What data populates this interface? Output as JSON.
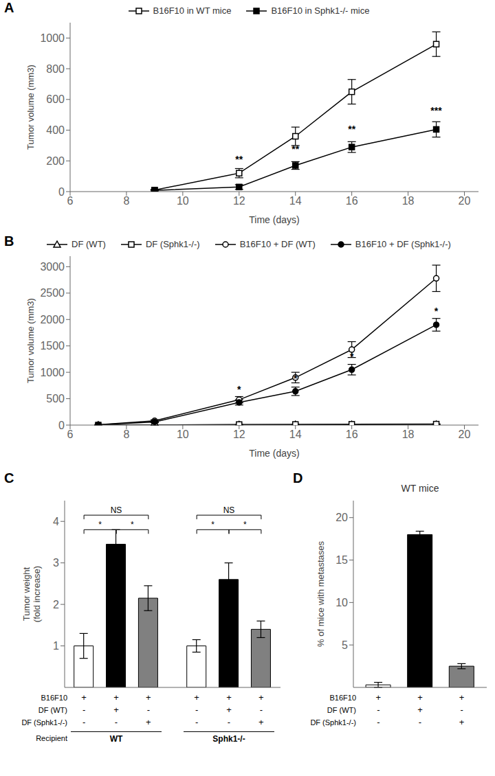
{
  "chart_data": [
    {
      "type": "line",
      "title": "A",
      "xlabel": "Time (days)",
      "ylabel": "Tumor volume (mm3)",
      "xlim": [
        6,
        20.5
      ],
      "ylim": [
        0,
        1100
      ],
      "xticks": [
        6,
        8,
        10,
        12,
        14,
        16,
        18,
        20
      ],
      "yticks": [
        0,
        200,
        400,
        600,
        800,
        1000
      ],
      "grid": false,
      "legend": "top",
      "series": [
        {
          "name": "B16F10 in WT mice",
          "color": "black",
          "marker": "open-square",
          "x": [
            9,
            12,
            14,
            16,
            19
          ],
          "values": [
            10,
            120,
            360,
            650,
            960
          ],
          "errors": [
            5,
            30,
            60,
            80,
            80
          ]
        },
        {
          "name": "B16F10 in Sphk1-/- mice",
          "color": "black",
          "marker": "square",
          "x": [
            9,
            12,
            14,
            16,
            19
          ],
          "values": [
            8,
            30,
            170,
            290,
            405
          ],
          "errors": [
            4,
            15,
            25,
            35,
            50
          ]
        }
      ],
      "annotations": [
        {
          "x": 12,
          "y": 175,
          "text": "**"
        },
        {
          "x": 14,
          "y": 240,
          "text": "**"
        },
        {
          "x": 16,
          "y": 370,
          "text": "**"
        },
        {
          "x": 19,
          "y": 490,
          "text": "***"
        }
      ]
    },
    {
      "type": "line",
      "title": "B",
      "xlabel": "Time (days)",
      "ylabel": "Tumor volume (mm3)",
      "xlim": [
        6,
        20.5
      ],
      "ylim": [
        0,
        3200
      ],
      "xticks": [
        6,
        8,
        10,
        12,
        14,
        16,
        18,
        20
      ],
      "yticks": [
        0,
        500,
        1000,
        1500,
        2000,
        2500,
        3000
      ],
      "grid": false,
      "legend": "top",
      "series": [
        {
          "name": "DF (WT)",
          "color": "black",
          "marker": "open-triangle",
          "x": [
            7,
            9,
            12,
            14,
            16,
            19
          ],
          "values": [
            0,
            2,
            5,
            8,
            10,
            12
          ],
          "errors": [
            0,
            1,
            2,
            2,
            2,
            3
          ]
        },
        {
          "name": "DF (Sphk1-/-)",
          "color": "black",
          "marker": "open-square",
          "x": [
            7,
            9,
            12,
            14,
            16,
            19
          ],
          "values": [
            0,
            3,
            10,
            12,
            15,
            18
          ],
          "errors": [
            0,
            1,
            2,
            2,
            3,
            4
          ]
        },
        {
          "name": "B16F10 + DF (WT)",
          "color": "black",
          "marker": "open-circle",
          "x": [
            7,
            9,
            12,
            14,
            16,
            19
          ],
          "values": [
            5,
            80,
            480,
            900,
            1430,
            2780
          ],
          "errors": [
            2,
            20,
            60,
            100,
            150,
            250
          ]
        },
        {
          "name": "B16F10 + DF (Sphk1-/-)",
          "color": "black",
          "marker": "circle",
          "x": [
            7,
            9,
            12,
            14,
            16,
            19
          ],
          "values": [
            5,
            60,
            430,
            640,
            1050,
            1900
          ],
          "errors": [
            2,
            15,
            50,
            80,
            100,
            120
          ]
        }
      ],
      "annotations": [
        {
          "x": 12,
          "y": 570,
          "text": "*"
        },
        {
          "x": 14,
          "y": 780,
          "text": "*"
        },
        {
          "x": 16,
          "y": 1200,
          "text": "*"
        },
        {
          "x": 19,
          "y": 2060,
          "text": "*"
        }
      ]
    },
    {
      "type": "bar",
      "title": "C",
      "ylabel": "Tumor weight\n(fold increase)",
      "ylim": [
        0,
        4.5
      ],
      "yticks": [
        0,
        1,
        2,
        3,
        4
      ],
      "grid": false,
      "groups": [
        {
          "name": "WT",
          "values": [
            1.0,
            3.45,
            2.15
          ],
          "errors": [
            0.3,
            0.35,
            0.3
          ],
          "colors": [
            "white",
            "black",
            "gray"
          ]
        },
        {
          "name": "Sphk1-/-",
          "values": [
            1.0,
            2.6,
            1.4
          ],
          "errors": [
            0.15,
            0.4,
            0.2
          ],
          "colors": [
            "white",
            "black",
            "gray"
          ]
        }
      ],
      "group_title": "Recipient",
      "annotations": [
        {
          "from": 0,
          "to": 2,
          "y": 4.15,
          "text": "NS"
        },
        {
          "from": 3,
          "to": 5,
          "y": 4.15,
          "text": "NS"
        },
        {
          "from": 0,
          "to": 1,
          "y": 3.8,
          "text": "*"
        },
        {
          "from": 1,
          "to": 2,
          "y": 3.8,
          "text": "*"
        },
        {
          "from": 3,
          "to": 4,
          "y": 3.8,
          "text": "*"
        },
        {
          "from": 4,
          "to": 5,
          "y": 3.8,
          "text": "*"
        }
      ],
      "table": {
        "rows": [
          "B16F10",
          "DF (WT)",
          "DF (Sphk1-/-)"
        ],
        "cells": [
          [
            "+",
            "+",
            "+",
            "+",
            "+",
            "+"
          ],
          [
            "-",
            "+",
            "-",
            "-",
            "+",
            "-"
          ],
          [
            "-",
            "-",
            "+",
            "-",
            "-",
            "+"
          ]
        ]
      }
    },
    {
      "type": "bar",
      "title": "D",
      "subtitle": "WT mice",
      "ylabel": "% of mice with metastases",
      "ylim": [
        0,
        22
      ],
      "yticks": [
        0,
        5,
        10,
        15,
        20
      ],
      "grid": false,
      "values": [
        0.3,
        18.0,
        2.5
      ],
      "errors": [
        0.3,
        0.4,
        0.3
      ],
      "colors": [
        "white",
        "black",
        "gray"
      ],
      "table": {
        "rows": [
          "B16F10",
          "DF (WT)",
          "DF (Sphk1-/-)"
        ],
        "cells": [
          [
            "+",
            "+",
            "+"
          ],
          [
            "-",
            "+",
            "-"
          ],
          [
            "-",
            "-",
            "+"
          ]
        ]
      }
    }
  ]
}
